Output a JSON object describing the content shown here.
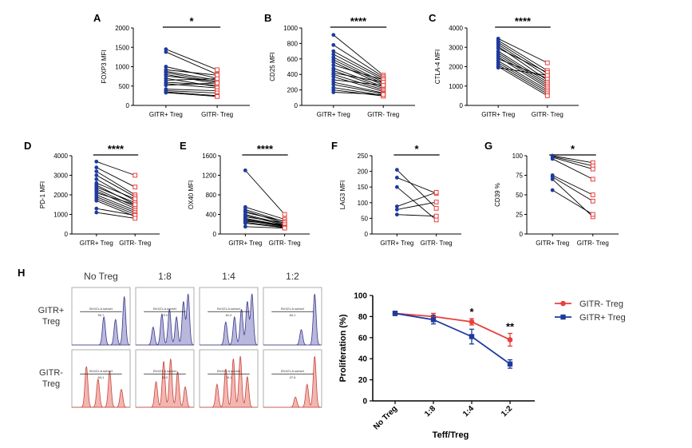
{
  "chart_data": [
    {
      "panel": "A",
      "type": "paired-dot",
      "ylabel": "FOXP3 MFI",
      "ylim": [
        0,
        2000
      ],
      "yticks": [
        0,
        500,
        1000,
        1500,
        2000
      ],
      "categories": [
        "GITR+ Treg",
        "GITR- Treg"
      ],
      "significance": "*",
      "pairs": [
        [
          1450,
          920
        ],
        [
          1380,
          800
        ],
        [
          1000,
          700
        ],
        [
          920,
          780
        ],
        [
          880,
          650
        ],
        [
          850,
          600
        ],
        [
          800,
          560
        ],
        [
          760,
          620
        ],
        [
          700,
          480
        ],
        [
          650,
          690
        ],
        [
          600,
          520
        ],
        [
          560,
          450
        ],
        [
          520,
          580
        ],
        [
          420,
          380
        ],
        [
          380,
          320
        ],
        [
          350,
          250
        ],
        [
          330,
          230
        ]
      ]
    },
    {
      "panel": "B",
      "type": "paired-dot",
      "ylabel": "CD25 MFI",
      "ylim": [
        0,
        1000
      ],
      "yticks": [
        0,
        200,
        400,
        600,
        800,
        1000
      ],
      "categories": [
        "GITR+ Treg",
        "GITR- Treg"
      ],
      "significance": "****",
      "pairs": [
        [
          910,
          390
        ],
        [
          780,
          370
        ],
        [
          700,
          350
        ],
        [
          660,
          330
        ],
        [
          620,
          300
        ],
        [
          590,
          280
        ],
        [
          560,
          260
        ],
        [
          520,
          330
        ],
        [
          480,
          240
        ],
        [
          450,
          220
        ],
        [
          420,
          300
        ],
        [
          400,
          200
        ],
        [
          370,
          180
        ],
        [
          330,
          260
        ],
        [
          300,
          160
        ],
        [
          270,
          150
        ],
        [
          230,
          130
        ],
        [
          200,
          120
        ],
        [
          170,
          140
        ]
      ]
    },
    {
      "panel": "C",
      "type": "paired-dot",
      "ylabel": "CTLA-4 MFI",
      "ylim": [
        0,
        4000
      ],
      "yticks": [
        0,
        1000,
        2000,
        3000,
        4000
      ],
      "categories": [
        "GITR+ Treg",
        "GITR- Treg"
      ],
      "significance": "****",
      "pairs": [
        [
          3450,
          2200
        ],
        [
          3350,
          1800
        ],
        [
          3250,
          1650
        ],
        [
          3150,
          1500
        ],
        [
          3050,
          1300
        ],
        [
          2950,
          1700
        ],
        [
          2800,
          1200
        ],
        [
          2700,
          1100
        ],
        [
          2600,
          1000
        ],
        [
          2500,
          900
        ],
        [
          2400,
          1400
        ],
        [
          2300,
          800
        ],
        [
          2200,
          700
        ],
        [
          2100,
          600
        ],
        [
          2000,
          500
        ],
        [
          1950,
          1550
        ]
      ]
    },
    {
      "panel": "D",
      "type": "paired-dot",
      "ylabel": "PD-1 MFI",
      "ylim": [
        0,
        4000
      ],
      "yticks": [
        0,
        1000,
        2000,
        3000,
        4000
      ],
      "categories": [
        "GITR+ Treg",
        "GITR- Treg"
      ],
      "significance": "****",
      "pairs": [
        [
          3700,
          3000
        ],
        [
          3400,
          2400
        ],
        [
          3200,
          2000
        ],
        [
          3000,
          1900
        ],
        [
          2800,
          1700
        ],
        [
          2600,
          1800
        ],
        [
          2500,
          1500
        ],
        [
          2400,
          1600
        ],
        [
          2300,
          1400
        ],
        [
          2200,
          1300
        ],
        [
          2100,
          1500
        ],
        [
          2000,
          1200
        ],
        [
          1900,
          1100
        ],
        [
          1800,
          1000
        ],
        [
          1700,
          900
        ],
        [
          1300,
          950
        ],
        [
          1100,
          800
        ]
      ]
    },
    {
      "panel": "E",
      "type": "paired-dot",
      "ylabel": "OX40 MFI",
      "ylim": [
        0,
        1600
      ],
      "yticks": [
        0,
        400,
        800,
        1200,
        1600
      ],
      "categories": [
        "GITR+ Treg",
        "GITR- Treg"
      ],
      "significance": "****",
      "pairs": [
        [
          1300,
          400
        ],
        [
          550,
          300
        ],
        [
          500,
          250
        ],
        [
          470,
          220
        ],
        [
          440,
          260
        ],
        [
          400,
          200
        ],
        [
          380,
          180
        ],
        [
          350,
          230
        ],
        [
          320,
          170
        ],
        [
          300,
          160
        ],
        [
          280,
          150
        ],
        [
          260,
          190
        ],
        [
          240,
          140
        ],
        [
          220,
          130
        ],
        [
          150,
          120
        ]
      ]
    },
    {
      "panel": "F",
      "type": "paired-dot",
      "ylabel": "LAG3 MFI",
      "ylim": [
        0,
        250
      ],
      "yticks": [
        0,
        50,
        100,
        150,
        200,
        250
      ],
      "categories": [
        "GITR+ Treg",
        "GITR- Treg"
      ],
      "significance": "*",
      "pairs": [
        [
          205,
          82
        ],
        [
          180,
          130
        ],
        [
          150,
          45
        ],
        [
          88,
          133
        ],
        [
          78,
          102
        ],
        [
          62,
          57
        ]
      ]
    },
    {
      "panel": "G",
      "type": "paired-dot",
      "ylabel": "CD39 %",
      "ylim": [
        0,
        100
      ],
      "yticks": [
        0,
        25,
        50,
        75,
        100
      ],
      "categories": [
        "GITR+ Treg",
        "GITR- Treg"
      ],
      "significance": "*",
      "pairs": [
        [
          100,
          91
        ],
        [
          99,
          87
        ],
        [
          98,
          83
        ],
        [
          96,
          70
        ],
        [
          75,
          50
        ],
        [
          73,
          42
        ],
        [
          70,
          22
        ],
        [
          56,
          25
        ]
      ]
    },
    {
      "panel": "H",
      "type": "line",
      "title": "",
      "xlabel": "Teff/Treg",
      "ylabel": "Proliferation (%)",
      "categories": [
        "No Treg",
        "1:8",
        "1:4",
        "1:2"
      ],
      "ylim": [
        0,
        100
      ],
      "yticks": [
        0,
        20,
        40,
        60,
        80,
        100
      ],
      "series": [
        {
          "name": "GITR- Treg",
          "color": "#e8403b",
          "marker": "circle",
          "values": [
            83,
            80,
            75,
            58
          ],
          "errors": [
            2,
            3,
            3,
            6
          ]
        },
        {
          "name": "GITR+ Treg",
          "color": "#1e3a9e",
          "marker": "square",
          "values": [
            83,
            77,
            61,
            35
          ],
          "errors": [
            2,
            4,
            7,
            4
          ]
        }
      ],
      "annotations": [
        {
          "category": "1:4",
          "text": "*"
        },
        {
          "category": "1:2",
          "text": "**"
        }
      ]
    }
  ],
  "histograms": {
    "panel": "H",
    "columns": [
      "No Treg",
      "1:8",
      "1:4",
      "1:2"
    ],
    "rows": [
      {
        "label": "GITR+\nTreg",
        "fill": "#b9b7dc",
        "stroke": "#3a3a8c"
      },
      {
        "label": "GITR-\nTreg",
        "fill": "#f3b6b0",
        "stroke": "#c8453d"
      }
    ],
    "gate_label": "BV421-A subset",
    "values": [
      [
        "50.7",
        "72.0",
        "81.0",
        "84.1"
      ],
      [
        "84.1",
        "83.0",
        "76.1",
        "37.6"
      ]
    ]
  }
}
